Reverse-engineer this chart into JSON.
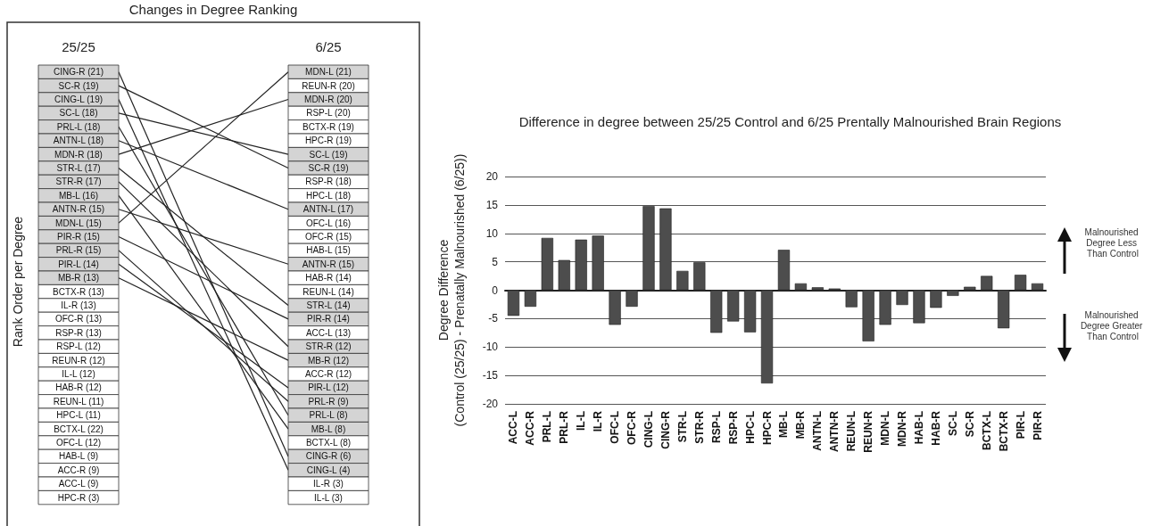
{
  "chart_data": [
    {
      "type": "other",
      "title": "Changes in Degree Ranking",
      "ylabel": "Rank Order per Degree",
      "categories": [
        "25/25",
        "6/25"
      ],
      "colors": [
        [
          "#d4d4d4",
          "#d4d4d4"
        ],
        [
          "#d4d4d4",
          "#ffffff"
        ],
        [
          "#d4d4d4",
          "#d4d4d4"
        ],
        [
          "#d4d4d4",
          "#ffffff"
        ],
        [
          "#d4d4d4",
          "#ffffff"
        ],
        [
          "#d4d4d4",
          "#ffffff"
        ],
        [
          "#d4d4d4",
          "#d4d4d4"
        ],
        [
          "#d4d4d4",
          "#d4d4d4"
        ],
        [
          "#d4d4d4",
          "#ffffff"
        ],
        [
          "#d4d4d4",
          "#ffffff"
        ],
        [
          "#d4d4d4",
          "#d4d4d4"
        ],
        [
          "#d4d4d4",
          "#ffffff"
        ],
        [
          "#d4d4d4",
          "#ffffff"
        ],
        [
          "#d4d4d4",
          "#ffffff"
        ],
        [
          "#d4d4d4",
          "#d4d4d4"
        ],
        [
          "#d4d4d4",
          "#ffffff"
        ],
        [
          "#ffffff",
          "#ffffff"
        ],
        [
          "#ffffff",
          "#d4d4d4"
        ],
        [
          "#ffffff",
          "#d4d4d4"
        ],
        [
          "#ffffff",
          "#ffffff"
        ],
        [
          "#ffffff",
          "#d4d4d4"
        ],
        [
          "#ffffff",
          "#d4d4d4"
        ],
        [
          "#ffffff",
          "#ffffff"
        ],
        [
          "#ffffff",
          "#d4d4d4"
        ],
        [
          "#ffffff",
          "#d4d4d4"
        ],
        [
          "#ffffff",
          "#d4d4d4"
        ],
        [
          "#ffffff",
          "#d4d4d4"
        ],
        [
          "#ffffff",
          "#ffffff"
        ],
        [
          "#ffffff",
          "#d4d4d4"
        ],
        [
          "#ffffff",
          "#d4d4d4"
        ],
        [
          "#ffffff",
          "#ffffff"
        ],
        [
          "#ffffff",
          "#ffffff"
        ]
      ],
      "cell_labels": [
        [
          "CING-R (21)",
          "MDN-L (21)"
        ],
        [
          "SC-R (19)",
          "REUN-R (20)"
        ],
        [
          "CING-L (19)",
          "MDN-R (20)"
        ],
        [
          "SC-L (18)",
          "RSP-L (20)"
        ],
        [
          "PRL-L (18)",
          "BCTX-R (19)"
        ],
        [
          "ANTN-L (18)",
          "HPC-R (19)"
        ],
        [
          "MDN-R (18)",
          "SC-L (19)"
        ],
        [
          "STR-L (17)",
          "SC-R (19)"
        ],
        [
          "STR-R (17)",
          "RSP-R (18)"
        ],
        [
          "MB-L (16)",
          "HPC-L (18)"
        ],
        [
          "ANTN-R (15)",
          "ANTN-L (17)"
        ],
        [
          "MDN-L (15)",
          "OFC-L (16)"
        ],
        [
          "PIR-R (15)",
          "OFC-R (15)"
        ],
        [
          "PRL-R (15)",
          "HAB-L (15)"
        ],
        [
          "PIR-L (14)",
          "ANTN-R (15)"
        ],
        [
          "MB-R (13)",
          "HAB-R (14)"
        ],
        [
          "BCTX-R (13)",
          "REUN-L (14)"
        ],
        [
          "IL-R (13)",
          "STR-L (14)"
        ],
        [
          "OFC-R (13)",
          "PIR-R (14)"
        ],
        [
          "RSP-R (13)",
          "ACC-L (13)"
        ],
        [
          "RSP-L (12)",
          "STR-R (12)"
        ],
        [
          "REUN-R (12)",
          "MB-R (12)"
        ],
        [
          "IL-L (12)",
          "ACC-R (12)"
        ],
        [
          "HAB-R (12)",
          "PIR-L (12)"
        ],
        [
          "REUN-L (11)",
          "PRL-R (9)"
        ],
        [
          "HPC-L (11)",
          "PRL-L (8)"
        ],
        [
          "BCTX-L (22)",
          "MB-L (8)"
        ],
        [
          "OFC-L (12)",
          "BCTX-L (8)"
        ],
        [
          "HAB-L (9)",
          "CING-R (6)"
        ],
        [
          "ACC-R (9)",
          "CING-L (4)"
        ],
        [
          "ACC-L (9)",
          "IL-R (3)"
        ],
        [
          "HPC-R (3)",
          "IL-L (3)"
        ]
      ]
    },
    {
      "type": "bar",
      "title": "Difference in degree between 25/25 Control and 6/25 Prentally Malnourished Brain Regions",
      "ylabel": "Degree Difference\n(Control (25/25) - Prenatally Malnourished (6/25))",
      "categories": [
        "ACC-L",
        "ACC-R",
        "PRL-L",
        "PRL-R",
        "IL-L",
        "IL-R",
        "OFC-L",
        "OFC-R",
        "CING-L",
        "CING-R",
        "STR-L",
        "STR-R",
        "RSP-L",
        "RSP-R",
        "HPC-L",
        "HPC-R",
        "MB-L",
        "MB-R",
        "ANTN-L",
        "ANTN-R",
        "REUN-L",
        "REUN-R",
        "MDN-L",
        "MDN-R",
        "HAB-L",
        "HAB-R",
        "SC-L",
        "SC-R",
        "BCTX-L",
        "BCTX-R",
        "PIR-L",
        "PIR-R"
      ],
      "values": [
        -4.5,
        -2.9,
        9.2,
        5.3,
        8.9,
        9.6,
        -6.1,
        -2.9,
        14.8,
        14.4,
        3.4,
        4.9,
        -7.5,
        -5.5,
        -7.4,
        -16.4,
        7.1,
        1.2,
        0.5,
        0.3,
        -3,
        -9,
        -6.1,
        -2.6,
        -5.8,
        -3.1,
        -1,
        0.6,
        2.5,
        -6.7,
        2.7,
        1.2
      ],
      "color": "#4d4d4d",
      "ylim": [
        -20,
        20
      ],
      "yticks": [
        -20,
        -15,
        -10,
        -5,
        0,
        5,
        10,
        15,
        20
      ],
      "grid": "y",
      "annotations": [
        "Malnourished Degree Less Than Control",
        "Malnourished Degree Greater Than Control"
      ]
    }
  ]
}
